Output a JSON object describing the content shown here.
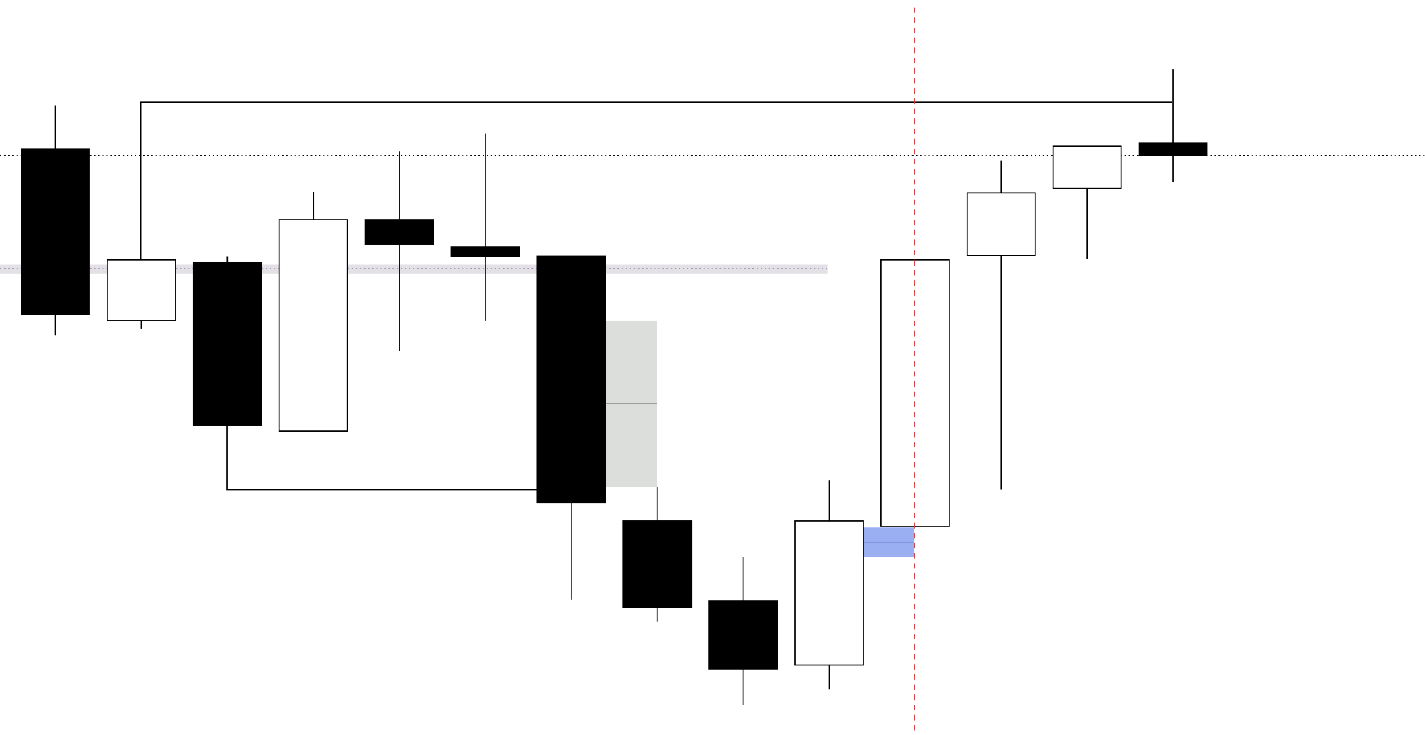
{
  "chart_data": {
    "type": "candlestick",
    "categories": [
      null,
      null,
      null,
      null,
      null,
      null,
      null,
      null,
      null,
      null,
      null,
      null,
      null,
      null
    ],
    "open": [
      638,
      451,
      514,
      331,
      561,
      531,
      521,
      233,
      146,
      76,
      227,
      522,
      595,
      644
    ],
    "high": [
      685,
      517,
      521,
      591,
      635,
      655,
      521,
      270,
      194,
      277,
      517,
      625,
      641,
      725
    ],
    "low": [
      435,
      442,
      337,
      331,
      418,
      451,
      147,
      123,
      33,
      50,
      227,
      267,
      518,
      602
    ],
    "close": [
      458,
      517,
      337,
      561,
      534,
      521,
      253,
      139,
      72,
      233,
      517,
      590,
      641,
      631
    ],
    "up_color": "#ffffff",
    "down_color": "#000000",
    "ylim": [
      0,
      800
    ]
  }
}
